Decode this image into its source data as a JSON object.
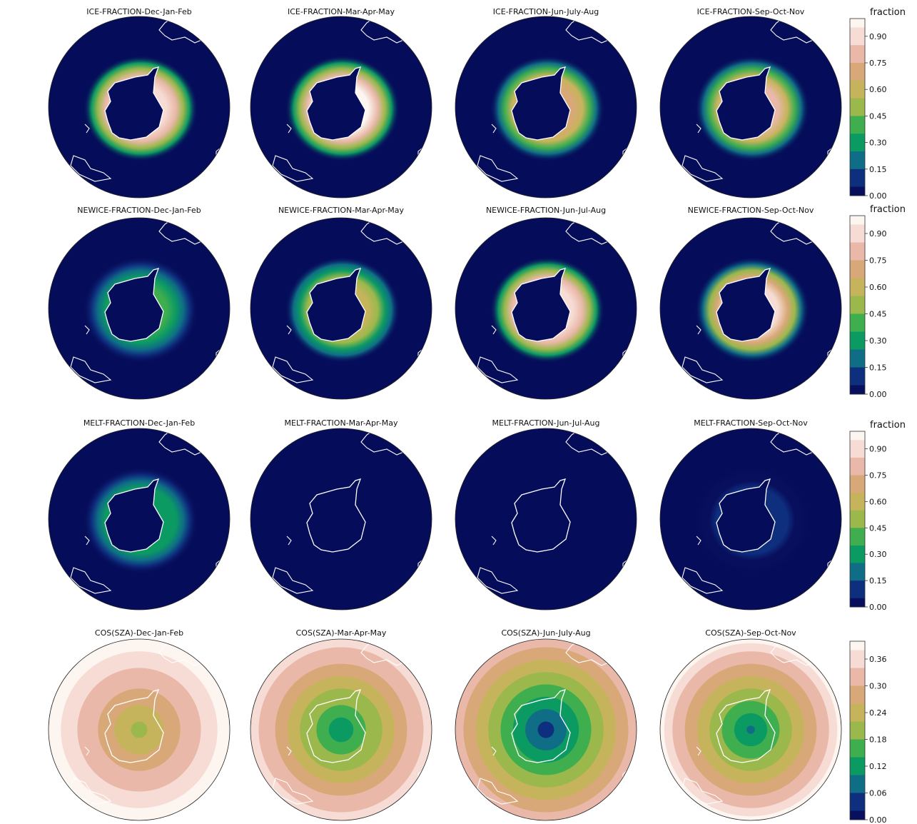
{
  "colormap": {
    "stops": [
      "#08105e",
      "#0e2e7e",
      "#0f6e86",
      "#0c9a63",
      "#3fae4f",
      "#9ab84c",
      "#c6b45c",
      "#d9a878",
      "#e9b8a9",
      "#f6dcd4",
      "#fcf5f0"
    ],
    "ocean_color": "#050d5a",
    "coast_color": "#ffffff"
  },
  "chart_data": [
    {
      "type": "heatmap",
      "row": "ICE-FRACTION",
      "projection": "south-polar-stereographic",
      "panels": [
        {
          "title": "ICE-FRACTION-Dec-Jan-Feb",
          "ring_peak": 0.9
        },
        {
          "title": "ICE-FRACTION-Mar-Apr-May",
          "ring_peak": 0.95
        },
        {
          "title": "ICE-FRACTION-Jun-July-Aug",
          "ring_peak": 0.7
        },
        {
          "title": "ICE-FRACTION-Sep-Oct-Nov",
          "ring_peak": 0.75
        }
      ],
      "colorbar": {
        "label": "fraction",
        "ticks": [
          "0.90",
          "0.75",
          "0.60",
          "0.45",
          "0.30",
          "0.15",
          "0.00"
        ],
        "range": [
          0,
          1
        ]
      }
    },
    {
      "type": "heatmap",
      "row": "NEWICE-FRACTION",
      "projection": "south-polar-stereographic",
      "panels": [
        {
          "title": "NEWICE-FRACTION-Dec-Jan-Feb",
          "ring_peak": 0.35
        },
        {
          "title": "NEWICE-FRACTION-Mar-Apr-May",
          "ring_peak": 0.6
        },
        {
          "title": "NEWICE-FRACTION-Jun-Jul-Aug",
          "ring_peak": 0.9
        },
        {
          "title": "NEWICE-FRACTION-Sep-Oct-Nov",
          "ring_peak": 0.88
        }
      ],
      "colorbar": {
        "label": "fraction",
        "ticks": [
          "0.90",
          "0.75",
          "0.60",
          "0.45",
          "0.30",
          "0.15",
          "0.00"
        ],
        "range": [
          0,
          1
        ]
      }
    },
    {
      "type": "heatmap",
      "row": "MELT-FRACTION",
      "projection": "south-polar-stereographic",
      "panels": [
        {
          "title": "MELT-FRACTION-Dec-Jan-Feb",
          "ring_peak": 0.3
        },
        {
          "title": "MELT-FRACTION-Mar-Apr-May",
          "ring_peak": 0.0
        },
        {
          "title": "MELT-FRACTION-Jun-Jul-Aug",
          "ring_peak": 0.0
        },
        {
          "title": "MELT-FRACTION-Sep-Oct-Nov",
          "ring_peak": 0.08
        }
      ],
      "colorbar": {
        "label": "fraction",
        "ticks": [
          "0.90",
          "0.75",
          "0.60",
          "0.45",
          "0.30",
          "0.15",
          "0.00"
        ],
        "range": [
          0,
          1
        ]
      }
    },
    {
      "type": "heatmap",
      "row": "COS(SZA)",
      "projection": "south-polar-stereographic",
      "panels": [
        {
          "title": "COS(SZA)-Dec-Jan-Feb",
          "center_value": 0.2,
          "edge_value": 0.4
        },
        {
          "title": "COS(SZA)-Mar-Apr-May",
          "center_value": 0.1,
          "edge_value": 0.36
        },
        {
          "title": "COS(SZA)-Jun-July-Aug",
          "center_value": 0.03,
          "edge_value": 0.32
        },
        {
          "title": "COS(SZA)-Sep-Oct-Nov",
          "center_value": 0.08,
          "edge_value": 0.38
        }
      ],
      "colorbar": {
        "label": "",
        "ticks": [
          "0.36",
          "0.30",
          "0.24",
          "0.18",
          "0.12",
          "0.06",
          "0.00"
        ],
        "range": [
          0,
          0.4
        ]
      }
    }
  ]
}
